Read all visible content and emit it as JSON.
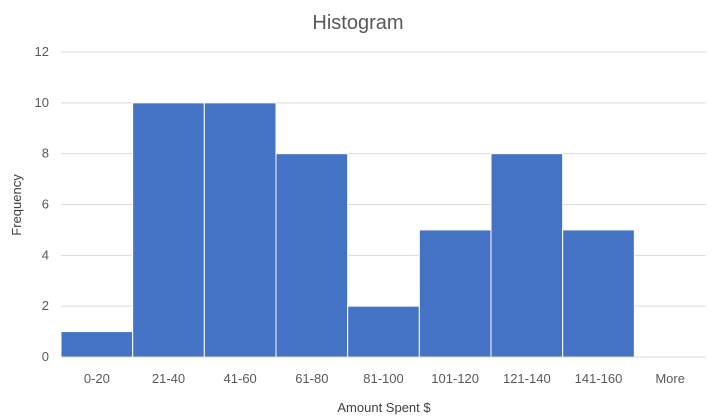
{
  "chart_data": {
    "type": "bar",
    "title": "Histogram",
    "xlabel": "Amount Spent $",
    "ylabel": "Frequency",
    "categories": [
      "0-20",
      "21-40",
      "41-60",
      "61-80",
      "81-100",
      "101-120",
      "121-140",
      "141-160",
      "More"
    ],
    "values": [
      1,
      10,
      10,
      8,
      2,
      5,
      8,
      5,
      0
    ],
    "ylim": [
      0,
      12
    ],
    "yticks": [
      0,
      2,
      4,
      6,
      8,
      10,
      12
    ],
    "grid": true,
    "legend": "none",
    "colors": {
      "bar": "#4472C4",
      "bar_edge": "#ffffff",
      "grid": "#D9D9D9",
      "axis": "#D9D9D9"
    }
  }
}
